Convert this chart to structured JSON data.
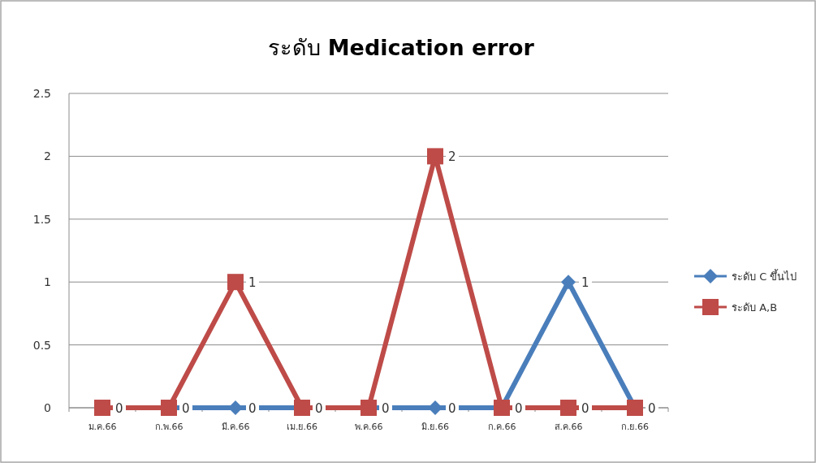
{
  "chart_data": {
    "type": "line",
    "title": "ระดับ **Medication error**",
    "categories": [
      "ม.ค.66",
      "ก.พ.66",
      "มี.ค.66",
      "เม.ย.66",
      "พ.ค.66",
      "มิ.ย.66",
      "ก.ค.66",
      "ส.ค.66",
      "ก.ย.66"
    ],
    "series": [
      {
        "name": "ระดับ C  ขึ้นไป",
        "color": "#4a7ebb",
        "marker": "diamond",
        "values": [
          0,
          0,
          0,
          0,
          0,
          0,
          0,
          1,
          0
        ],
        "value_labels": [
          null,
          null,
          "0",
          null,
          null,
          "0",
          null,
          "1",
          null
        ]
      },
      {
        "name": "ระดับ A,B",
        "color": "#be4b48",
        "marker": "square",
        "values": [
          0,
          0,
          1,
          0,
          0,
          2,
          0,
          0,
          0
        ],
        "value_labels": [
          "0",
          "0",
          "1",
          "0",
          "0",
          "2",
          "0",
          "0",
          "0"
        ]
      }
    ],
    "ylim": [
      0,
      2.5
    ],
    "yticks": [
      0,
      0.5,
      1,
      1.5,
      2,
      2.5
    ],
    "grid": "y",
    "legend": "right",
    "line_style": "solid"
  }
}
